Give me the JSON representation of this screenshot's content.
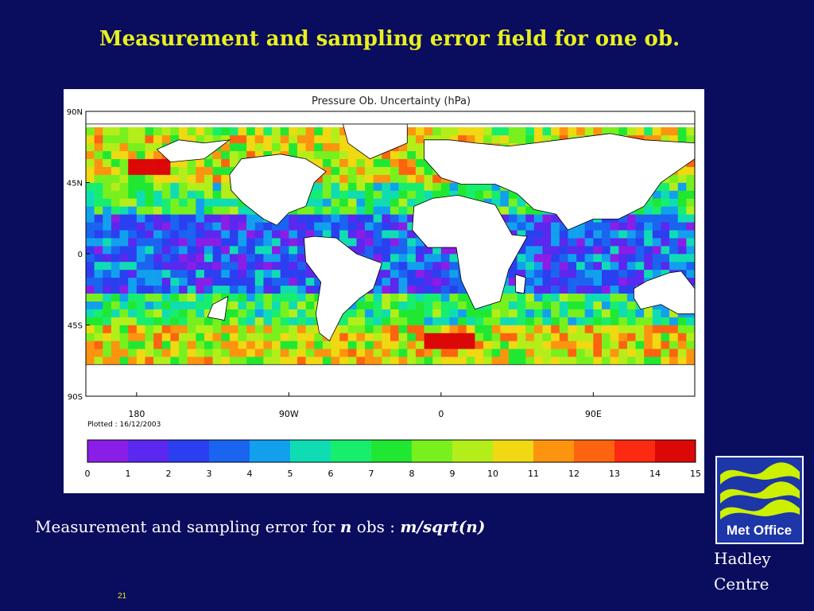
{
  "slide": {
    "title": "Measurement and sampling error field for one ob.",
    "caption": {
      "prefix": "Measurement and sampling error for ",
      "n": "n",
      "middle": " obs :  ",
      "formula": "m/sqrt(n)"
    },
    "slide_number": "21",
    "logo_text": "Met Office",
    "org_line1": "Hadley",
    "org_line2": "Centre",
    "colors": {
      "background": "#0a0c5e",
      "title": "#e8f01e",
      "logo_bg": "#1d36a8",
      "logo_wave": "#ccf000"
    }
  },
  "chart_data": {
    "type": "heatmap",
    "title": "Pressure Ob. Uncertainty (hPa)",
    "plotted_note": "Plotted : 16/12/2003",
    "y_tick_labels": [
      "90N",
      "45N",
      "0",
      "45S",
      "90S"
    ],
    "y_tick_values": [
      90,
      45,
      0,
      -45,
      -90
    ],
    "x_tick_labels": [
      "180",
      "90W",
      "0",
      "90E"
    ],
    "x_tick_values": [
      -180,
      -90,
      0,
      90
    ],
    "xlim": [
      -210,
      150
    ],
    "ylim": [
      -90,
      90
    ],
    "grid_resolution_deg": 5,
    "colorbar": {
      "ticks": [
        "0",
        "1",
        "2",
        "3",
        "4",
        "5",
        "6",
        "7",
        "8",
        "9",
        "10",
        "11",
        "12",
        "13",
        "14",
        "15"
      ],
      "colors": [
        "#8a1ee6",
        "#5a28ee",
        "#2a40f0",
        "#1a64f0",
        "#12a0ee",
        "#10dcb4",
        "#18ee6e",
        "#20e832",
        "#78f01e",
        "#b4ee1a",
        "#f0d812",
        "#fc9410",
        "#fc6410",
        "#fc2a10",
        "#dc0808"
      ]
    },
    "zonal_pattern": [
      {
        "lat_range": [
          75,
          82
        ],
        "typical_value": 9
      },
      {
        "lat_range": [
          45,
          75
        ],
        "typical_value": 10
      },
      {
        "lat_range": [
          25,
          45
        ],
        "typical_value": 7
      },
      {
        "lat_range": [
          -25,
          25
        ],
        "typical_value": 3
      },
      {
        "lat_range": [
          -45,
          -25
        ],
        "typical_value": 7
      },
      {
        "lat_range": [
          -70,
          -45
        ],
        "typical_value": 10
      }
    ],
    "maxima_regions": [
      {
        "lat_range": [
          50,
          60
        ],
        "lon_range": [
          -185,
          -160
        ],
        "value": 14
      },
      {
        "lat_range": [
          -60,
          -50
        ],
        "lon_range": [
          -10,
          20
        ],
        "value": 14
      }
    ]
  }
}
